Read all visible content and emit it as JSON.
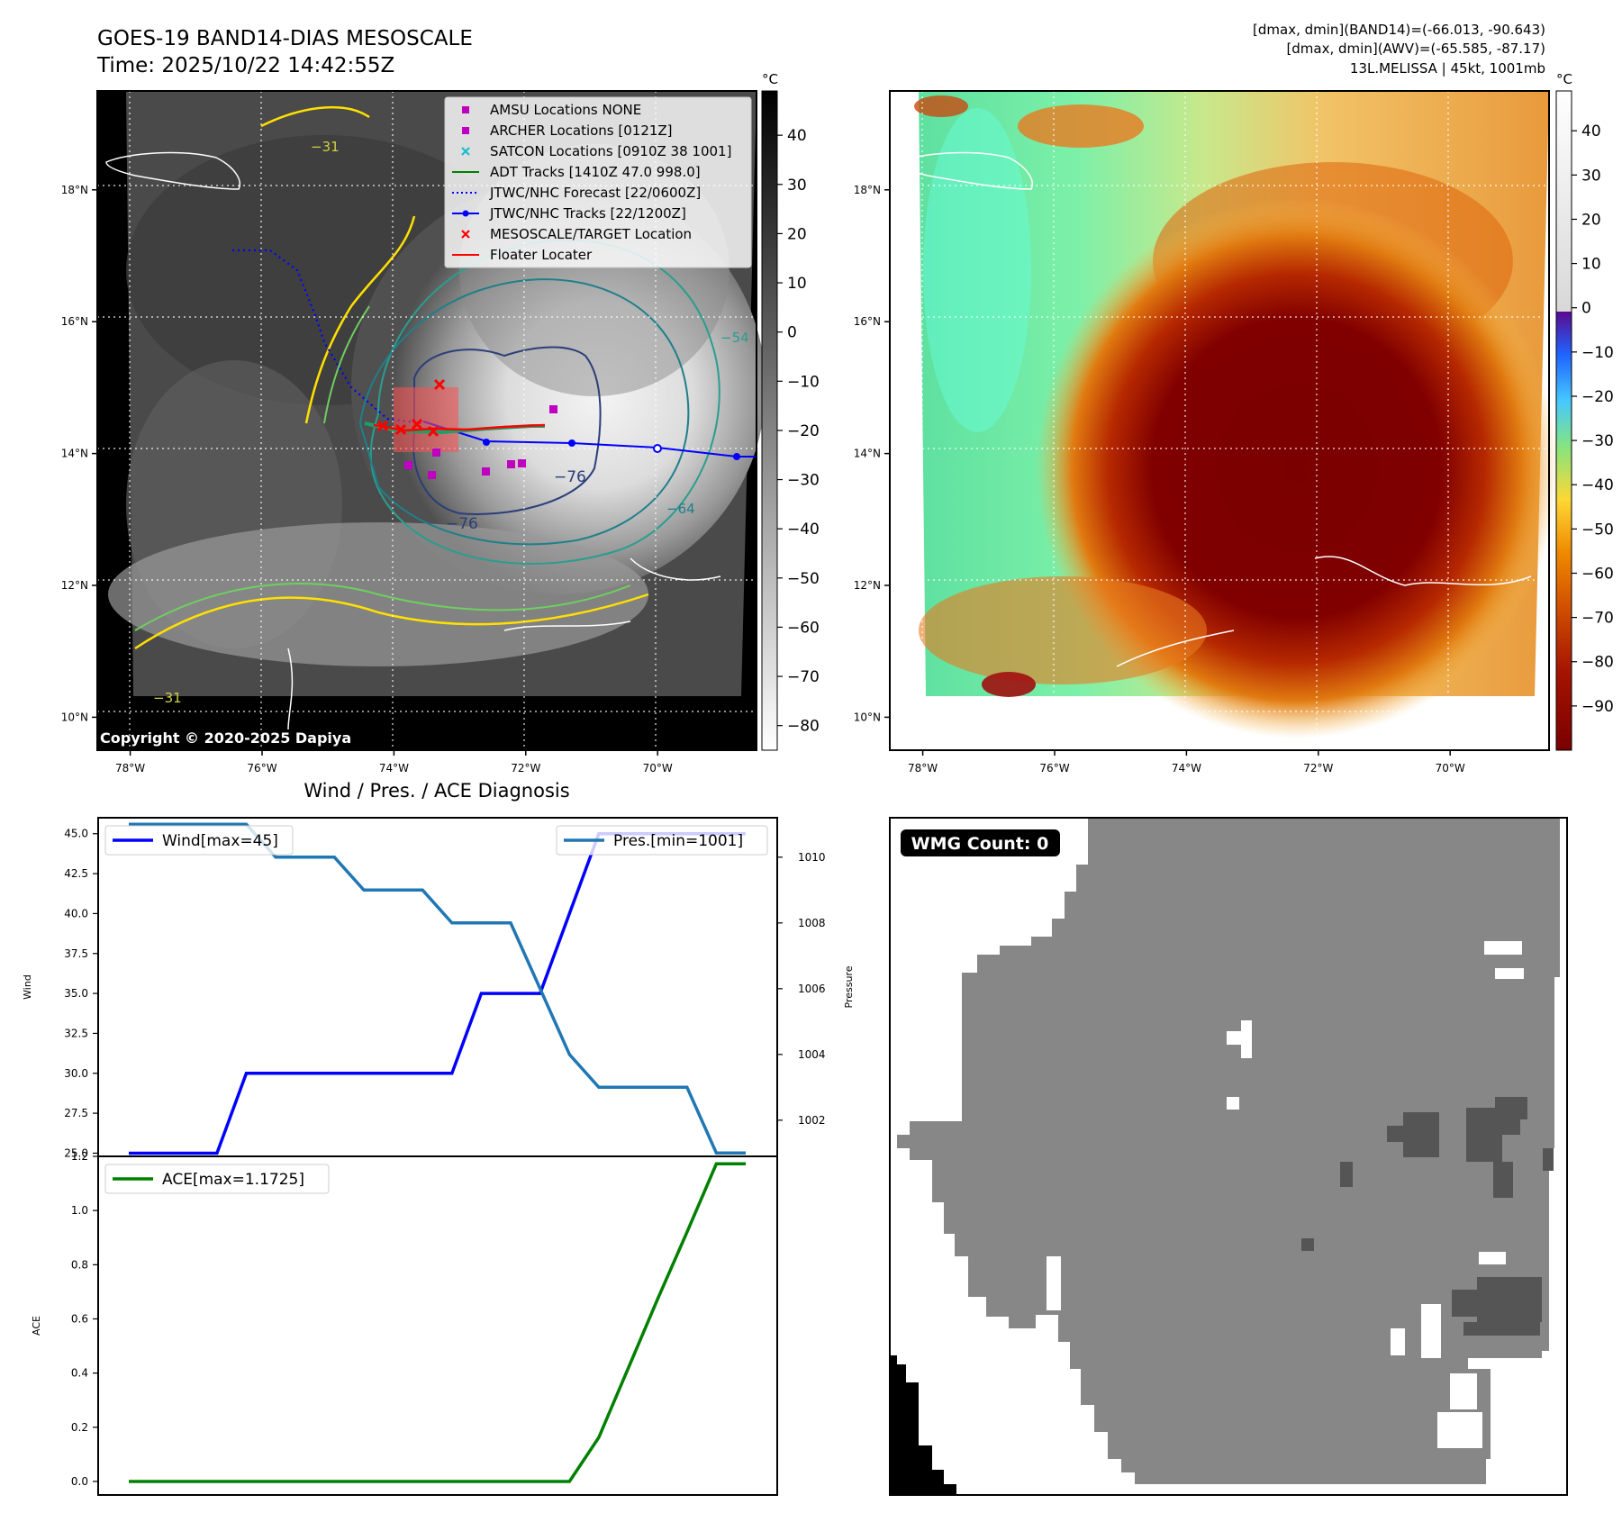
{
  "header": {
    "title_line1": "GOES-19 BAND14-DIAS MESOSCALE",
    "title_line2": "Time: 2025/10/22 14:42:55Z",
    "right_line1": "[dmax, dmin](BAND14)=(-66.013, -90.643)",
    "right_line2": "[dmax, dmin](AWV)=(-65.585, -87.17)",
    "right_line3": "13L.MELISSA | 45kt, 1001mb"
  },
  "map_common": {
    "lon_ticks": [
      "78°W",
      "76°W",
      "74°W",
      "72°W",
      "70°W"
    ],
    "lat_ticks": [
      "18°N",
      "16°N",
      "14°N",
      "12°N",
      "10°N"
    ],
    "lon_values": [
      -78,
      -76,
      -74,
      -72,
      -70
    ],
    "lat_values": [
      18,
      16,
      14,
      12,
      10
    ],
    "lon_range": [
      -78.5,
      -68.5
    ],
    "lat_range": [
      9.5,
      19.5
    ]
  },
  "ir_panel": {
    "colorbar_unit": "°C",
    "colorbar_ticks": [
      "40",
      "30",
      "20",
      "10",
      "0",
      "−10",
      "−20",
      "−30",
      "−40",
      "−50",
      "−60",
      "−70",
      "−80"
    ],
    "colorbar_values": [
      40,
      30,
      20,
      10,
      0,
      -10,
      -20,
      -30,
      -40,
      -50,
      -60,
      -70,
      -80
    ],
    "colorbar_range": [
      -85,
      49
    ],
    "copyright": "Copyright © 2020-2025 Dapiya",
    "contour_labels": [
      "−31",
      "−31",
      "−54",
      "−64",
      "−76",
      "−76"
    ],
    "legend": [
      {
        "label": "AMSU Locations NONE",
        "color": "#c000c0",
        "kind": "square"
      },
      {
        "label": "ARCHER Locations [0121Z]",
        "color": "#c000c0",
        "kind": "square"
      },
      {
        "label": "SATCON Locations [0910Z 38 1001]",
        "color": "#17becf",
        "kind": "x"
      },
      {
        "label": "ADT Tracks [1410Z 47.0 998.0]",
        "color": "#008000",
        "kind": "line"
      },
      {
        "label": "JTWC/NHC Forecast [22/0600Z]",
        "color": "#0000ff",
        "kind": "dotted"
      },
      {
        "label": "JTWC/NHC Tracks [22/1200Z]",
        "color": "#0000ff",
        "kind": "line-dot"
      },
      {
        "label": "MESOSCALE/TARGET Location",
        "color": "#ff0000",
        "kind": "x"
      },
      {
        "label": "Floater Locater",
        "color": "#ff0000",
        "kind": "line"
      }
    ]
  },
  "awv_panel": {
    "colorbar_unit": "°C",
    "colorbar_ticks": [
      "40",
      "30",
      "20",
      "10",
      "0",
      "−10",
      "−20",
      "−30",
      "−40",
      "−50",
      "−60",
      "−70",
      "−80",
      "−90"
    ],
    "colorbar_values": [
      40,
      30,
      20,
      10,
      0,
      -10,
      -20,
      -30,
      -40,
      -50,
      -60,
      -70,
      -80,
      -90
    ],
    "colorbar_range": [
      -100,
      49
    ]
  },
  "diag_panel": {
    "title": "Wind / Pres. / ACE Diagnosis",
    "wind_ylabel": "Wind",
    "pres_ylabel": "Pressure",
    "ace_ylabel": "ACE",
    "wind_legend": "Wind[max=45]",
    "pres_legend": "Pres.[min=1001]",
    "ace_legend": "ACE[max=1.1725]",
    "wind_ticks": [
      "45.0",
      "42.5",
      "40.0",
      "37.5",
      "35.0",
      "32.5",
      "30.0",
      "27.5",
      "25.0"
    ],
    "pres_ticks": [
      "1010",
      "1008",
      "1006",
      "1004",
      "1002"
    ],
    "ace_ticks": [
      "1.2",
      "1.0",
      "0.8",
      "0.6",
      "0.4",
      "0.2",
      "0.0"
    ]
  },
  "wmg_panel": {
    "badge": "WMG Count: 0"
  },
  "chart_data": [
    {
      "type": "line",
      "name": "wind",
      "x": [
        0,
        1,
        2,
        3,
        4,
        5,
        6,
        7,
        8,
        9,
        10,
        11,
        12,
        13,
        14,
        15,
        16,
        17,
        18,
        19,
        20,
        21
      ],
      "values": [
        25,
        25,
        25,
        25,
        30,
        30,
        30,
        30,
        30,
        30,
        30,
        30,
        35,
        35,
        35,
        40,
        45,
        45,
        45,
        45,
        45,
        45
      ],
      "ylim": [
        24.8,
        46
      ],
      "color": "#0000ff"
    },
    {
      "type": "line",
      "name": "pressure",
      "x": [
        0,
        1,
        2,
        3,
        4,
        5,
        6,
        7,
        8,
        9,
        10,
        11,
        12,
        13,
        14,
        15,
        16,
        17,
        18,
        19,
        20,
        21
      ],
      "values": [
        1011,
        1011,
        1011,
        1011,
        1011,
        1010,
        1010,
        1010,
        1009,
        1009,
        1009,
        1008,
        1008,
        1008,
        1006,
        1004,
        1003,
        1003,
        1003,
        1003,
        1001,
        1001
      ],
      "ylim": [
        1000.9,
        1011.2
      ],
      "color": "#1f77b4"
    },
    {
      "type": "line",
      "name": "ace",
      "x": [
        0,
        1,
        2,
        3,
        4,
        5,
        6,
        7,
        8,
        9,
        10,
        11,
        12,
        13,
        14,
        15,
        16,
        17,
        18,
        19,
        20,
        21
      ],
      "values": [
        0,
        0,
        0,
        0,
        0,
        0,
        0,
        0,
        0,
        0,
        0,
        0,
        0,
        0,
        0,
        0,
        0.1625,
        0.4175,
        0.6725,
        0.92,
        1.1725,
        1.1725
      ],
      "ylim": [
        -0.05,
        1.2
      ],
      "color": "#008000"
    }
  ]
}
